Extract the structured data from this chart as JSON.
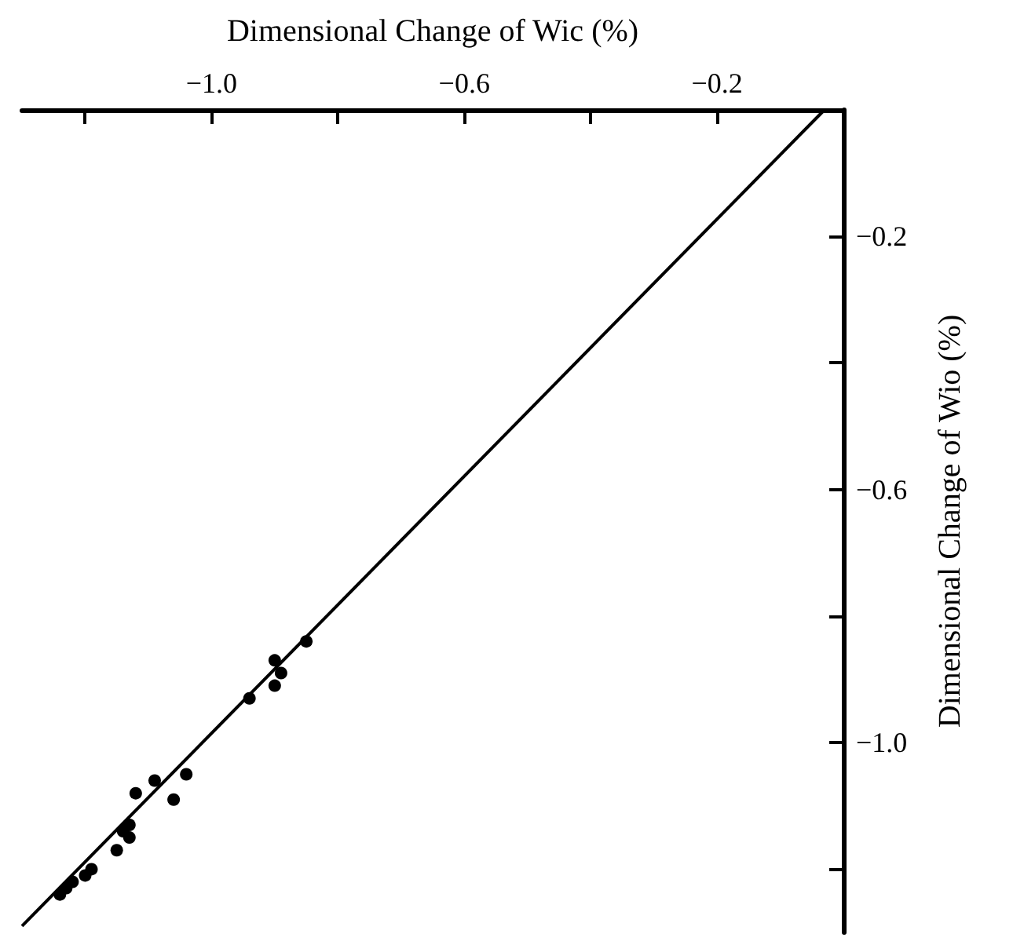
{
  "chart_data": {
    "type": "scatter",
    "xlabel": "Dimensional Change of Wic (%)",
    "ylabel": "Dimensional Change of Wio (%)",
    "xlim": [
      -1.3,
      0
    ],
    "ylim": [
      -1.3,
      0
    ],
    "xticks": [
      {
        "value": -1.2,
        "label": null
      },
      {
        "value": -1.0,
        "label": "−1.0"
      },
      {
        "value": -0.8,
        "label": null
      },
      {
        "value": -0.6,
        "label": "−0.6"
      },
      {
        "value": -0.4,
        "label": null
      },
      {
        "value": -0.2,
        "label": "−0.2"
      }
    ],
    "yticks": [
      {
        "value": -1.2,
        "label": null
      },
      {
        "value": -1.0,
        "label": "−1.0"
      },
      {
        "value": -0.8,
        "label": null
      },
      {
        "value": -0.6,
        "label": "−0.6"
      },
      {
        "value": -0.4,
        "label": null
      },
      {
        "value": -0.2,
        "label": "−0.2"
      }
    ],
    "grid": false,
    "marker": "circle",
    "series": [
      {
        "color": "#000000",
        "x": [
          -0.85,
          -0.9,
          -0.89,
          -0.9,
          -0.94,
          -1.04,
          -1.09,
          -1.06,
          -1.12,
          -1.13,
          -1.14,
          -1.13,
          -1.15,
          -1.19,
          -1.2,
          -1.22,
          -1.23,
          -1.24
        ],
        "values": [
          -0.84,
          -0.87,
          -0.89,
          -0.91,
          -0.93,
          -1.05,
          -1.06,
          -1.09,
          -1.08,
          -1.13,
          -1.14,
          -1.15,
          -1.17,
          -1.2,
          -1.21,
          -1.22,
          -1.23,
          -1.24
        ]
      },
      {
        "type": "line",
        "color": "#000000",
        "marker": "none",
        "line_style": "solid",
        "x": [
          -1.3,
          -0.03
        ],
        "values": [
          -1.29,
          0
        ]
      }
    ]
  }
}
